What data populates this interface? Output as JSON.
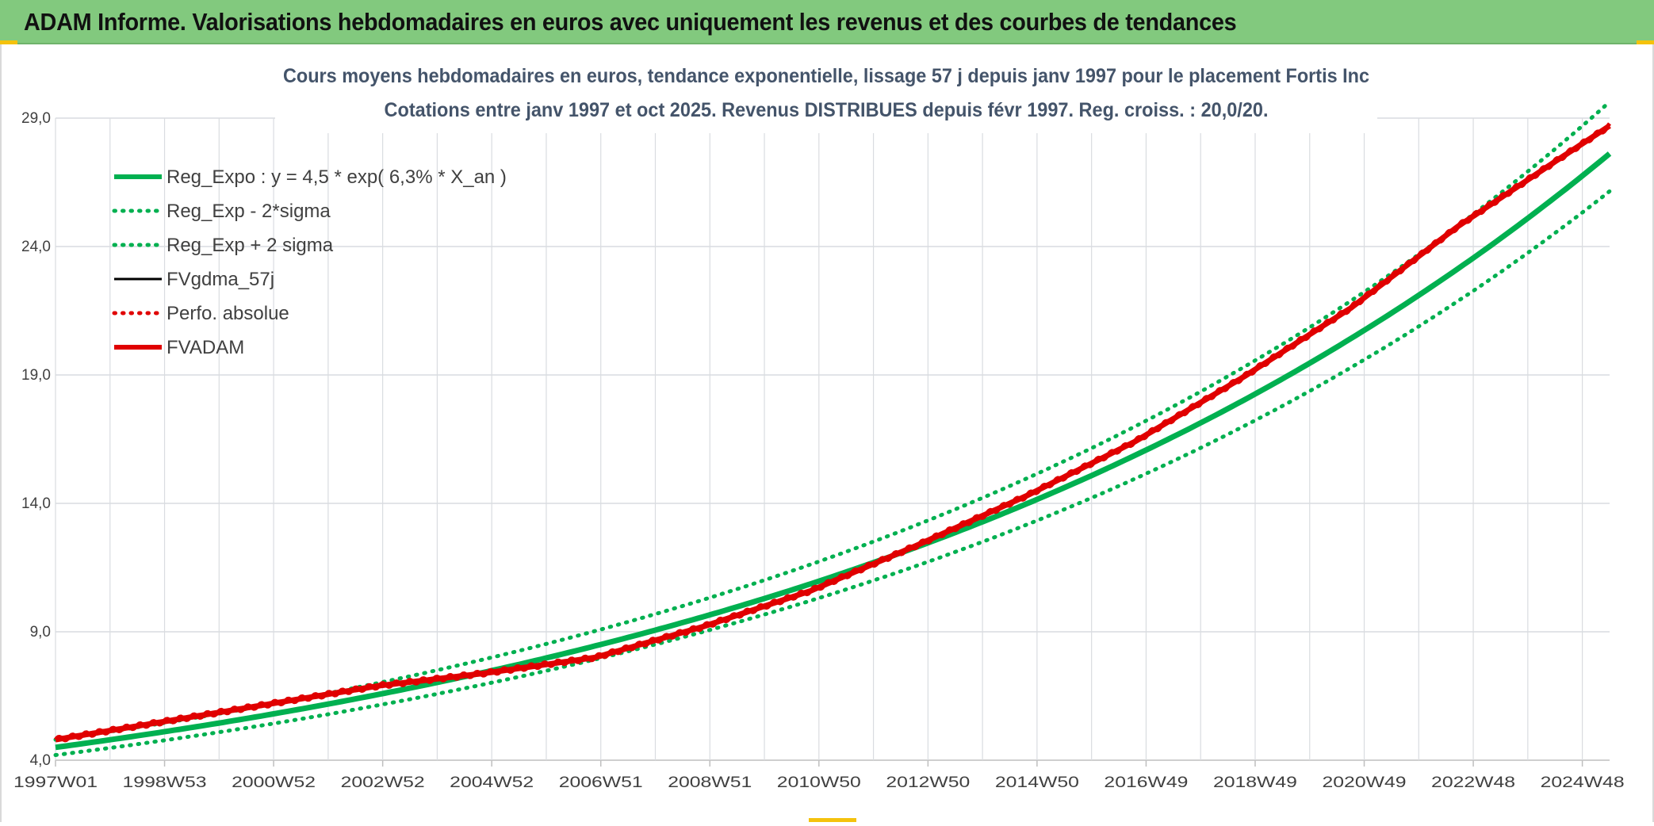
{
  "header": {
    "title": "ADAM Informe. Valorisations hebdomadaires en euros avec uniquement les revenus et des courbes de tendances"
  },
  "chart_data": {
    "type": "line",
    "title_line1": "Cours moyens hebdomadaires en euros, tendance exponentielle, lissage 57 j depuis janv 1997 pour le placement Fortis Inc",
    "title_line2": "Cotations entre janv 1997 et oct 2025. Revenus DISTRIBUES depuis févr 1997. Reg. croiss. : 20,0/20.",
    "xlabel": "",
    "ylabel": "",
    "ylim": [
      4.0,
      29.0
    ],
    "yticks": [
      "4,0",
      "9,0",
      "14,0",
      "19,0",
      "24,0",
      "29,0"
    ],
    "x_tick_labels": [
      "1997W01",
      "1998W53",
      "2000W52",
      "2002W52",
      "2004W52",
      "2006W51",
      "2008W51",
      "2010W50",
      "2012W50",
      "2014W50",
      "2016W49",
      "2018W49",
      "2020W49",
      "2022W48",
      "2024W48"
    ],
    "x_range_years": [
      1997.0,
      2025.8
    ],
    "grid": true,
    "legend_position": "top-left",
    "series": [
      {
        "name": "Reg_Expo : y = 4,5 * exp( 6,3% *  X_an )",
        "color": "#00b050",
        "style": "solid-thick",
        "formula": {
          "a": 4.5,
          "rate": 0.063
        }
      },
      {
        "name": "Reg_Exp - 2*sigma",
        "color": "#00b050",
        "style": "dotted",
        "formula": {
          "a": 4.2,
          "rate": 0.0635
        }
      },
      {
        "name": "Reg_Exp + 2 sigma",
        "color": "#00b050",
        "style": "dotted",
        "formula": {
          "a": 4.8,
          "rate": 0.0632
        }
      },
      {
        "name": "FVgdma_57j",
        "color": "#000000",
        "style": "solid"
      },
      {
        "name": "Perfo. absolue",
        "color": "#e00000",
        "style": "dotted"
      },
      {
        "name": "FVADAM",
        "color": "#e00000",
        "style": "solid-thick",
        "x": [
          1997.0,
          1999.0,
          2001.0,
          2003.0,
          2005.0,
          2007.0,
          2009.0,
          2011.0,
          2013.0,
          2015.0,
          2017.0,
          2019.0,
          2021.0,
          2023.0,
          2025.0,
          2025.8
        ],
        "y": [
          4.8,
          5.5,
          6.2,
          6.9,
          7.4,
          8.0,
          9.2,
          10.6,
          12.4,
          14.3,
          16.4,
          18.9,
          21.6,
          24.8,
          27.6,
          28.7
        ]
      }
    ],
    "colors": {
      "green": "#00b050",
      "red": "#e00000",
      "grid": "#d9dce0",
      "title_text": "#44546a"
    }
  }
}
